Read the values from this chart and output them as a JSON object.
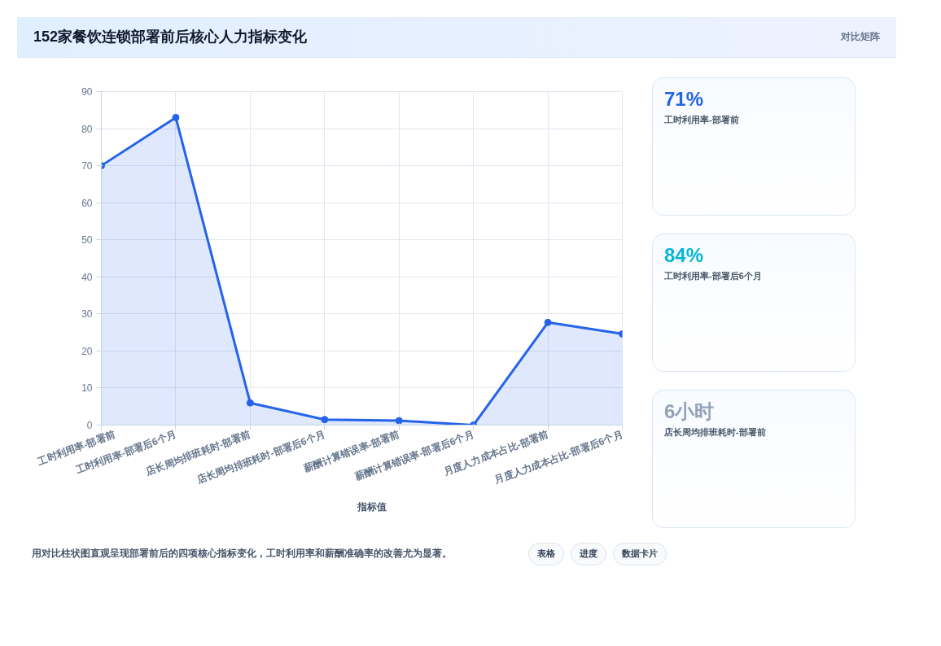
{
  "chart_data": [
    {
      "type": "line",
      "title": "152家餐饮连锁部署前后核心人力指标变化",
      "categories": [
        "工时利用率-部署前",
        "工时利用率-部署后6个月",
        "店长周均排班耗时-部署前",
        "店长周均排班耗时-部署后6个月",
        "薪酬计算错误率-部署前",
        "薪酬计算错误率-部署后6个月",
        "月度人力成本占比-部署前",
        "月度人力成本占比-部署后6个月"
      ],
      "series": [
        {
          "name": "指标值",
          "color": "#2563eb",
          "values": [
            70,
            83,
            6,
            1.5,
            1.2,
            0,
            27.7,
            24.6
          ]
        }
      ],
      "ylim": [
        0,
        90
      ],
      "yticks": [
        0,
        10,
        20,
        30,
        40,
        50,
        60,
        70,
        80,
        90
      ],
      "grid": true,
      "legend": "bottom",
      "marker": "circle",
      "annotations": [
        "对比矩阵",
        "用对比柱状图直观呈现部署前后的四项核心指标变化，工时利用率和薪酬准确率的改善尤为显著。",
        "表格",
        "进度",
        "数据卡片"
      ]
    },
    {
      "type": "other",
      "title": "71%",
      "subtitle": "工时利用率-部署前"
    },
    {
      "type": "other",
      "title": "84%",
      "subtitle": "工时利用率-部署后6个月"
    },
    {
      "type": "other",
      "title": "6小时",
      "subtitle": "店长周均排班耗时-部署前"
    }
  ]
}
